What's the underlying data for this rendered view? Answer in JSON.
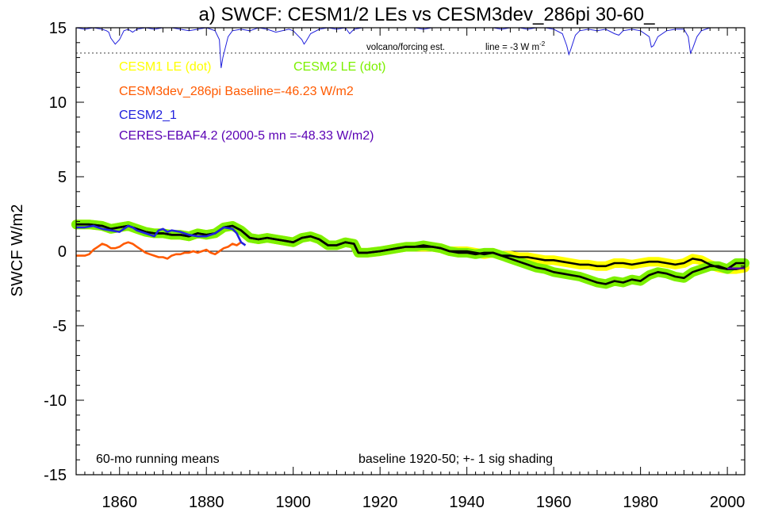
{
  "chart_data": {
    "type": "line",
    "title": "a) SWCF: CESM1/2 LEs vs CESM3dev_286pi 30-60_",
    "xlabel": "",
    "ylabel": "SWCF W/m2",
    "xlim": [
      1850,
      2004
    ],
    "ylim": [
      -15,
      15
    ],
    "x_ticks": [
      1860,
      1880,
      1900,
      1920,
      1940,
      1960,
      1980,
      2000
    ],
    "y_ticks": [
      -15,
      -10,
      -5,
      0,
      5,
      10,
      15
    ],
    "grid": false,
    "zero_line": true,
    "annotations": {
      "volcano": "volcano/forcing est.",
      "line_note": "line = -3 W m",
      "line_note_sup": "-2",
      "running_mean": "60-mo running means",
      "baseline": "baseline 1920-50; +- 1 sig shading"
    },
    "legend": {
      "placement": "top-left",
      "entries": [
        {
          "label": "CESM1 LE (dot)",
          "color": "#ffff00"
        },
        {
          "label": "CESM2 LE (dot)",
          "color": "#7cf000"
        },
        {
          "label": "CESM3dev_286pi Baseline=-46.23 W/m2",
          "color": "#ff5a00"
        },
        {
          "label": "CESM2_1",
          "color": "#2222dd"
        },
        {
          "label": "CERES-EBAF4.2 (2000-5 mn =-48.33 W/m2)",
          "color": "#5a00b4"
        }
      ]
    },
    "colors": {
      "cesm1_shade": "#ffff00",
      "cesm2_shade": "#7cf000",
      "ens_mean": "#000000",
      "cesm3dev": "#ff5a00",
      "cesm2_1": "#2222dd",
      "ceres": "#5a00b4",
      "volcano": "#2222dd"
    },
    "series": [
      {
        "name": "CESM1 LE (dot)",
        "x": [
          1850,
          1853,
          1856,
          1858,
          1860,
          1862,
          1864,
          1866,
          1868,
          1870,
          1872,
          1874,
          1876,
          1878,
          1880,
          1882,
          1884,
          1886,
          1888,
          1890,
          1892,
          1894,
          1896,
          1898,
          1900,
          1902,
          1904,
          1906,
          1908,
          1910,
          1912,
          1914,
          1915,
          1917,
          1920,
          1922,
          1924,
          1926,
          1928,
          1930,
          1932,
          1934,
          1936,
          1938,
          1940,
          1942,
          1944,
          1946,
          1948,
          1950,
          1952,
          1954,
          1956,
          1958,
          1960,
          1962,
          1964,
          1966,
          1968,
          1970,
          1972,
          1974,
          1976,
          1978,
          1980,
          1982,
          1984,
          1986,
          1988,
          1990,
          1992,
          1994,
          1996,
          1998,
          2000,
          2002,
          2004
        ],
        "y": [
          1.8,
          1.8,
          1.7,
          1.5,
          1.6,
          1.7,
          1.5,
          1.3,
          1.2,
          1.2,
          1.1,
          1.1,
          1.0,
          1.2,
          1.1,
          1.2,
          1.6,
          1.7,
          1.4,
          0.9,
          0.8,
          0.9,
          0.8,
          0.7,
          0.6,
          0.9,
          1.0,
          0.8,
          0.4,
          0.4,
          0.6,
          0.5,
          -0.1,
          -0.1,
          0.0,
          0.1,
          0.2,
          0.3,
          0.3,
          0.3,
          0.3,
          0.2,
          0.0,
          0.0,
          0.0,
          -0.1,
          -0.2,
          -0.1,
          -0.3,
          -0.3,
          -0.4,
          -0.4,
          -0.5,
          -0.6,
          -0.6,
          -0.7,
          -0.8,
          -0.9,
          -0.9,
          -1.0,
          -1.0,
          -0.8,
          -0.8,
          -0.9,
          -0.8,
          -0.7,
          -0.7,
          -0.8,
          -0.9,
          -0.8,
          -0.5,
          -0.6,
          -0.9,
          -1.1,
          -1.2,
          -1.2,
          -1.1
        ]
      },
      {
        "name": "CESM2 LE (dot)",
        "x": [
          1850,
          1853,
          1856,
          1858,
          1860,
          1862,
          1864,
          1866,
          1868,
          1870,
          1872,
          1874,
          1876,
          1878,
          1880,
          1882,
          1884,
          1886,
          1888,
          1890,
          1892,
          1894,
          1896,
          1898,
          1900,
          1902,
          1904,
          1906,
          1908,
          1910,
          1912,
          1914,
          1915,
          1917,
          1920,
          1922,
          1924,
          1926,
          1928,
          1930,
          1932,
          1934,
          1936,
          1938,
          1940,
          1942,
          1944,
          1946,
          1948,
          1950,
          1952,
          1954,
          1956,
          1958,
          1960,
          1962,
          1964,
          1966,
          1968,
          1970,
          1972,
          1974,
          1976,
          1978,
          1980,
          1982,
          1984,
          1986,
          1988,
          1990,
          1992,
          1994,
          1996,
          1998,
          2000,
          2002,
          2004
        ],
        "y": [
          1.8,
          1.8,
          1.7,
          1.5,
          1.6,
          1.7,
          1.5,
          1.3,
          1.2,
          1.2,
          1.1,
          1.1,
          1.0,
          1.2,
          1.1,
          1.2,
          1.6,
          1.7,
          1.4,
          0.9,
          0.8,
          0.9,
          0.8,
          0.7,
          0.6,
          0.9,
          1.0,
          0.8,
          0.4,
          0.4,
          0.6,
          0.5,
          -0.1,
          -0.1,
          0.0,
          0.1,
          0.2,
          0.3,
          0.3,
          0.4,
          0.3,
          0.2,
          0.0,
          -0.1,
          -0.1,
          -0.2,
          -0.1,
          -0.1,
          -0.3,
          -0.5,
          -0.7,
          -0.9,
          -1.1,
          -1.2,
          -1.4,
          -1.5,
          -1.6,
          -1.7,
          -1.9,
          -2.1,
          -2.2,
          -2.0,
          -2.1,
          -1.9,
          -2.0,
          -1.6,
          -1.4,
          -1.5,
          -1.7,
          -1.8,
          -1.4,
          -1.2,
          -1.0,
          -1.0,
          -1.2,
          -0.8,
          -0.8
        ]
      },
      {
        "name": "CESM3dev_286pi",
        "x": [
          1850,
          1851,
          1852,
          1853,
          1854,
          1855,
          1856,
          1857,
          1858,
          1859,
          1860,
          1861,
          1862,
          1863,
          1864,
          1865,
          1866,
          1867,
          1868,
          1869,
          1870,
          1871,
          1872,
          1873,
          1874,
          1875,
          1876,
          1877,
          1878,
          1879,
          1880,
          1881,
          1882,
          1883,
          1884,
          1885,
          1886,
          1887,
          1888
        ],
        "y": [
          -0.3,
          -0.3,
          -0.3,
          -0.2,
          0.1,
          0.3,
          0.5,
          0.4,
          0.2,
          0.2,
          0.3,
          0.5,
          0.6,
          0.5,
          0.3,
          0.1,
          -0.1,
          -0.2,
          -0.3,
          -0.4,
          -0.4,
          -0.5,
          -0.3,
          -0.2,
          -0.2,
          -0.1,
          -0.1,
          0.0,
          -0.1,
          0.0,
          0.1,
          -0.1,
          -0.2,
          0.0,
          0.2,
          0.3,
          0.5,
          0.4,
          0.6
        ]
      },
      {
        "name": "CESM2_1",
        "x": [
          1850,
          1852,
          1854,
          1856,
          1858,
          1860,
          1861,
          1862,
          1863,
          1864,
          1866,
          1868,
          1869,
          1870,
          1871,
          1872,
          1874,
          1876,
          1878,
          1880,
          1882,
          1884,
          1886,
          1887,
          1888,
          1889
        ],
        "y": [
          1.6,
          1.6,
          1.7,
          1.5,
          1.4,
          1.3,
          1.5,
          1.7,
          1.6,
          1.4,
          1.2,
          1.0,
          1.4,
          1.5,
          1.3,
          1.4,
          1.3,
          1.1,
          1.0,
          1.0,
          1.2,
          1.6,
          1.5,
          1.2,
          0.6,
          0.4
        ]
      },
      {
        "name": "CESM LE ensemble mean",
        "x": [
          1850,
          1853,
          1856,
          1858,
          1860,
          1862,
          1864,
          1866,
          1868,
          1870,
          1872,
          1874,
          1876,
          1878,
          1880,
          1882,
          1884,
          1886,
          1888,
          1890,
          1892,
          1894,
          1896,
          1898,
          1900,
          1902,
          1904,
          1906,
          1908,
          1910,
          1912,
          1914,
          1915,
          1917,
          1920,
          1922,
          1924,
          1926,
          1928,
          1930,
          1932,
          1934,
          1936,
          1938,
          1940,
          1942,
          1944,
          1946,
          1948,
          1950,
          1952,
          1954,
          1956,
          1958,
          1960,
          1962,
          1964,
          1966,
          1968,
          1970,
          1972,
          1974,
          1976,
          1978,
          1980,
          1982,
          1984,
          1986,
          1988,
          1990,
          1992,
          1994,
          1996,
          1998,
          2000,
          2002,
          2004
        ],
        "y": [
          1.8,
          1.8,
          1.7,
          1.5,
          1.6,
          1.7,
          1.5,
          1.3,
          1.2,
          1.2,
          1.1,
          1.1,
          1.0,
          1.2,
          1.1,
          1.2,
          1.6,
          1.7,
          1.4,
          0.9,
          0.8,
          0.9,
          0.8,
          0.7,
          0.6,
          0.9,
          1.0,
          0.8,
          0.4,
          0.4,
          0.6,
          0.5,
          -0.1,
          -0.1,
          0.0,
          0.1,
          0.2,
          0.3,
          0.3,
          0.3,
          0.3,
          0.2,
          0.0,
          0.0,
          0.0,
          -0.1,
          -0.2,
          -0.1,
          -0.3,
          -0.4,
          -0.5,
          -0.6,
          -0.7,
          -0.8,
          -0.9,
          -1.0,
          -1.1,
          -1.2,
          -1.3,
          -1.4,
          -1.5,
          -1.4,
          -1.4,
          -1.3,
          -1.3,
          -1.1,
          -1.0,
          -1.1,
          -1.2,
          -1.2,
          -0.9,
          -0.8,
          -0.9,
          -1.1,
          -1.1,
          -1.0,
          -0.9
        ]
      },
      {
        "name": "CERES-EBAF4.2",
        "x": [
          2000,
          2004
        ],
        "y": [
          -1.15,
          -1.15
        ]
      },
      {
        "name": "volcano/forcing est.",
        "baseline_y": 15.0,
        "x": [
          1850,
          1852,
          1854,
          1856,
          1857,
          1857.5,
          1858,
          1859,
          1860,
          1861,
          1862,
          1863,
          1864,
          1866,
          1868,
          1870,
          1872,
          1874,
          1876,
          1878,
          1880,
          1882,
          1883,
          1883.4,
          1883.8,
          1885,
          1886,
          1888,
          1890,
          1892,
          1894,
          1896,
          1899,
          1900,
          1902,
          1902.5,
          1903,
          1904,
          1906,
          1908,
          1910,
          1912,
          1913,
          1914,
          1916,
          1918,
          1920,
          1922,
          1924,
          1926,
          1928,
          1930,
          1932,
          1934,
          1936,
          1938,
          1940,
          1942,
          1944,
          1946,
          1948,
          1950,
          1952,
          1954,
          1956,
          1958,
          1960,
          1962,
          1963,
          1963.5,
          1964,
          1965,
          1966,
          1968,
          1970,
          1972,
          1974,
          1975,
          1976,
          1978,
          1980,
          1982,
          1982.5,
          1983,
          1984,
          1986,
          1988,
          1990,
          1991,
          1991.5,
          1992,
          1993,
          1994,
          1996,
          1998,
          2000,
          2002,
          2004
        ],
        "y": [
          15,
          14.9,
          15,
          14.9,
          14.8,
          14.7,
          14.3,
          13.9,
          14.2,
          14.8,
          14.9,
          14.7,
          14.9,
          15,
          14.9,
          15,
          15,
          14.9,
          14.8,
          14.9,
          15,
          14.8,
          14.2,
          12.3,
          13.0,
          14.4,
          14.8,
          14.9,
          14.8,
          15,
          14.9,
          14.7,
          14.9,
          14.8,
          14.2,
          13.9,
          14.1,
          14.6,
          14.9,
          15,
          14.9,
          15,
          14.6,
          14.9,
          15,
          15,
          15,
          15,
          15,
          15,
          15,
          14.9,
          15,
          15,
          15,
          15,
          15,
          15,
          15,
          15,
          14.9,
          15,
          15,
          14.9,
          15,
          15,
          14.9,
          14.6,
          13.8,
          13.2,
          13.6,
          14.5,
          14.8,
          14.9,
          14.8,
          14.9,
          14.6,
          14.5,
          14.8,
          14.9,
          14.8,
          14.4,
          13.7,
          13.8,
          14.4,
          14.8,
          14.9,
          14.9,
          14.4,
          13.3,
          13.6,
          14.4,
          14.8,
          15,
          15,
          15,
          15,
          15
        ]
      }
    ],
    "volcano_ref_line": 13.3
  }
}
